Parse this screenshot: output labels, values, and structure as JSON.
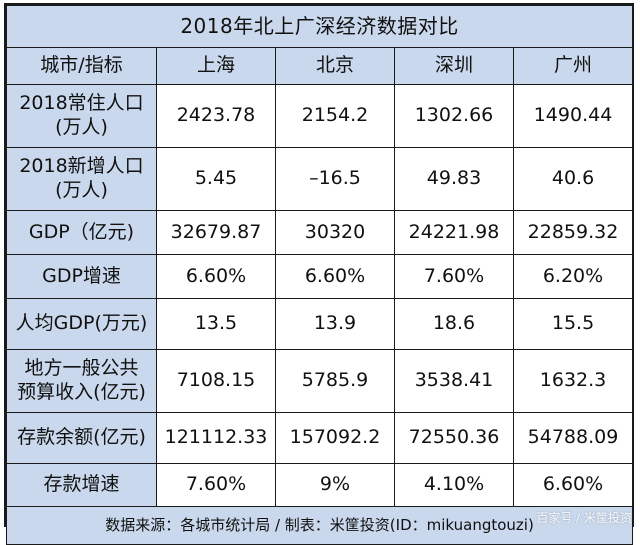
{
  "title": "2018年北上广深经济数据对比",
  "header": {
    "indicator": "城市/指标",
    "cities": [
      "上海",
      "北京",
      "深圳",
      "广州"
    ]
  },
  "rows": [
    {
      "label": "2018常住人口(万人)",
      "values": [
        "2423.78",
        "2154.2",
        "1302.66",
        "1490.44"
      ]
    },
    {
      "label": "2018新增人口(万人)",
      "values": [
        "5.45",
        "–16.5",
        "49.83",
        "40.6"
      ]
    },
    {
      "label": "GDP（亿元)",
      "values": [
        "32679.87",
        "30320",
        "24221.98",
        "22859.32"
      ]
    },
    {
      "label": "GDP增速",
      "values": [
        "6.60%",
        "6.60%",
        "7.60%",
        "6.20%"
      ]
    },
    {
      "label": "人均GDP(万元)",
      "values": [
        "13.5",
        "13.9",
        "18.6",
        "15.5"
      ]
    },
    {
      "label": "地方一般公共预算收入(亿元)",
      "values": [
        "7108.15",
        "5785.9",
        "3538.41",
        "1632.3"
      ]
    },
    {
      "label": "存款余额(亿元)",
      "values": [
        "121112.33",
        "157092.2",
        "72550.36",
        "54788.09"
      ]
    },
    {
      "label": "存款增速",
      "values": [
        "7.60%",
        "9%",
        "4.10%",
        "6.60%"
      ]
    }
  ],
  "row_labels_display": {
    "r0_line1": "2018常住人口",
    "r0_line2": "(万人)",
    "r1_line1": "2018新增人口",
    "r1_line2": "(万人)",
    "r5_line1": "地方一般公共",
    "r5_line2": "预算收入(亿元)"
  },
  "footer": "数据来源：各城市统计局 / 制表：米筐投资(ID：mikuangtouzi)",
  "watermark": "百家号 / 米筐投资",
  "colors": {
    "header_bg": "#c9d8ec",
    "cell_bg": "#ffffff",
    "border": "#1a1a1a"
  }
}
